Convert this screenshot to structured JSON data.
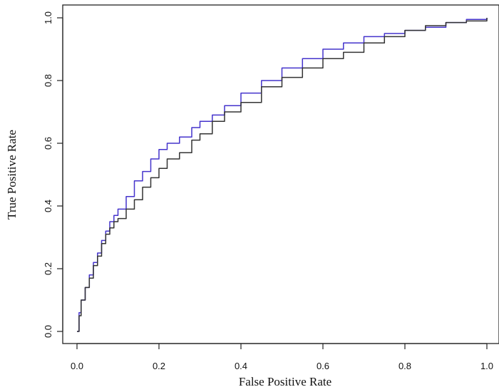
{
  "chart_data": {
    "type": "line",
    "title": "",
    "xlabel": "False Positive Rate",
    "ylabel": "True Positive Rate",
    "xlim": [
      0,
      1
    ],
    "ylim": [
      0,
      1
    ],
    "x_ticks": [
      "0.0",
      "0.2",
      "0.4",
      "0.6",
      "0.8",
      "1.0"
    ],
    "y_ticks": [
      "0.0",
      "0.2",
      "0.4",
      "0.6",
      "0.8",
      "1.0"
    ],
    "grid": false,
    "legend": "none",
    "series": [
      {
        "color": "#4433cc",
        "x": [
          0.0,
          0.005,
          0.01,
          0.02,
          0.03,
          0.04,
          0.05,
          0.06,
          0.07,
          0.08,
          0.09,
          0.1,
          0.12,
          0.14,
          0.16,
          0.18,
          0.2,
          0.22,
          0.25,
          0.28,
          0.3,
          0.33,
          0.36,
          0.4,
          0.45,
          0.5,
          0.55,
          0.6,
          0.65,
          0.7,
          0.75,
          0.8,
          0.85,
          0.9,
          0.95,
          1.0
        ],
        "y": [
          0.0,
          0.06,
          0.1,
          0.14,
          0.18,
          0.22,
          0.25,
          0.29,
          0.32,
          0.35,
          0.37,
          0.39,
          0.43,
          0.48,
          0.51,
          0.55,
          0.58,
          0.6,
          0.62,
          0.65,
          0.67,
          0.69,
          0.72,
          0.76,
          0.8,
          0.84,
          0.87,
          0.9,
          0.92,
          0.94,
          0.95,
          0.96,
          0.97,
          0.985,
          0.995,
          1.0
        ]
      },
      {
        "color": "#333333",
        "x": [
          0.0,
          0.005,
          0.01,
          0.02,
          0.03,
          0.04,
          0.05,
          0.06,
          0.07,
          0.08,
          0.09,
          0.1,
          0.12,
          0.14,
          0.16,
          0.18,
          0.2,
          0.22,
          0.25,
          0.28,
          0.3,
          0.33,
          0.36,
          0.4,
          0.45,
          0.5,
          0.55,
          0.6,
          0.65,
          0.7,
          0.75,
          0.8,
          0.85,
          0.9,
          0.95,
          1.0
        ],
        "y": [
          0.0,
          0.05,
          0.1,
          0.14,
          0.17,
          0.21,
          0.24,
          0.28,
          0.31,
          0.33,
          0.35,
          0.36,
          0.39,
          0.42,
          0.46,
          0.49,
          0.52,
          0.55,
          0.57,
          0.61,
          0.63,
          0.67,
          0.7,
          0.73,
          0.78,
          0.81,
          0.84,
          0.87,
          0.89,
          0.92,
          0.94,
          0.96,
          0.975,
          0.985,
          0.99,
          1.0
        ]
      }
    ]
  }
}
